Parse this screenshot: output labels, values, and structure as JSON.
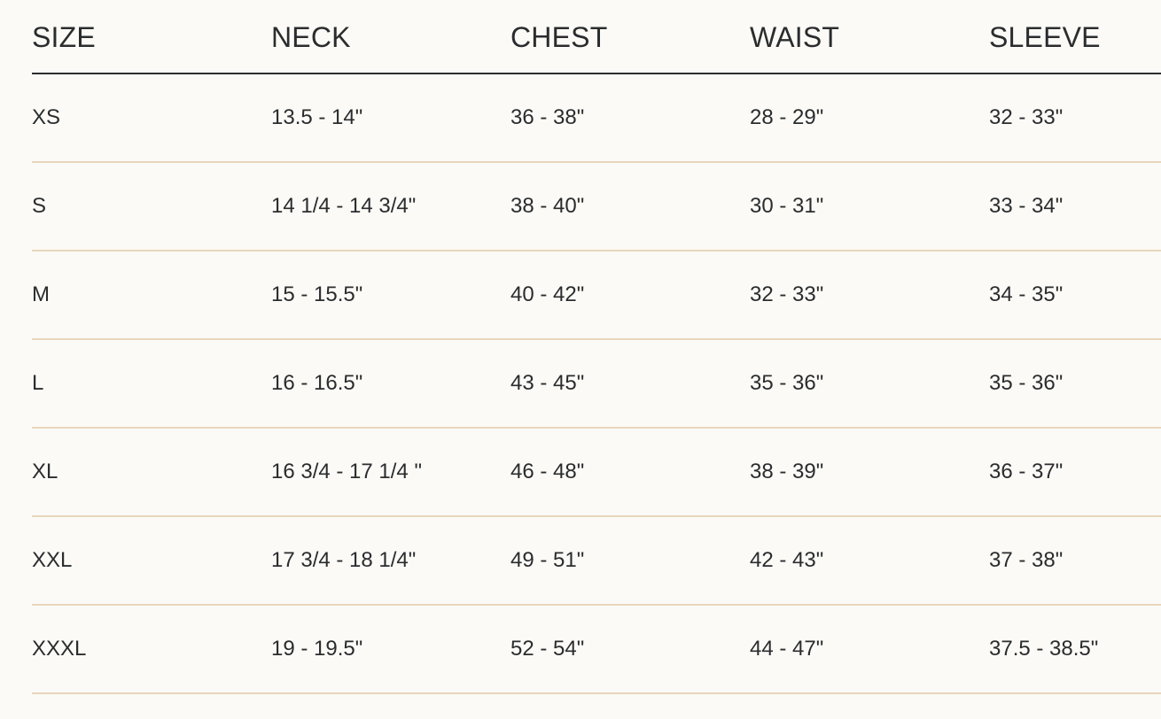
{
  "headers": [
    "SIZE",
    "NECK",
    "CHEST",
    "WAIST",
    "SLEEVE"
  ],
  "rows": [
    [
      "XS",
      "13.5 - 14\"",
      "36 - 38\"",
      "28 - 29\"",
      "32 - 33\""
    ],
    [
      "S",
      "14 1/4 - 14 3/4\"",
      "38 - 40\"",
      "30 - 31\"",
      "33 - 34\""
    ],
    [
      "M",
      "15 - 15.5\"",
      "40 - 42\"",
      "32 - 33\"",
      "34 - 35\""
    ],
    [
      "L",
      "16 - 16.5\"",
      "43 - 45\"",
      "35 - 36\"",
      "35 - 36\""
    ],
    [
      "XL",
      "16 3/4 - 17 1/4 \"",
      "46 - 48\"",
      "38 - 39\"",
      "36 - 37\""
    ],
    [
      "XXL",
      "17 3/4 - 18 1/4\"",
      "49 - 51\"",
      "42 - 43\"",
      "37 - 38\""
    ],
    [
      "XXXL",
      "19 - 19.5\"",
      "52 - 54\"",
      "44 - 47\"",
      "37.5 - 38.5\""
    ]
  ],
  "colors": {
    "background": "#fbfaf6",
    "text": "#2a2c2e",
    "row_divider": "#e8d6bc"
  }
}
